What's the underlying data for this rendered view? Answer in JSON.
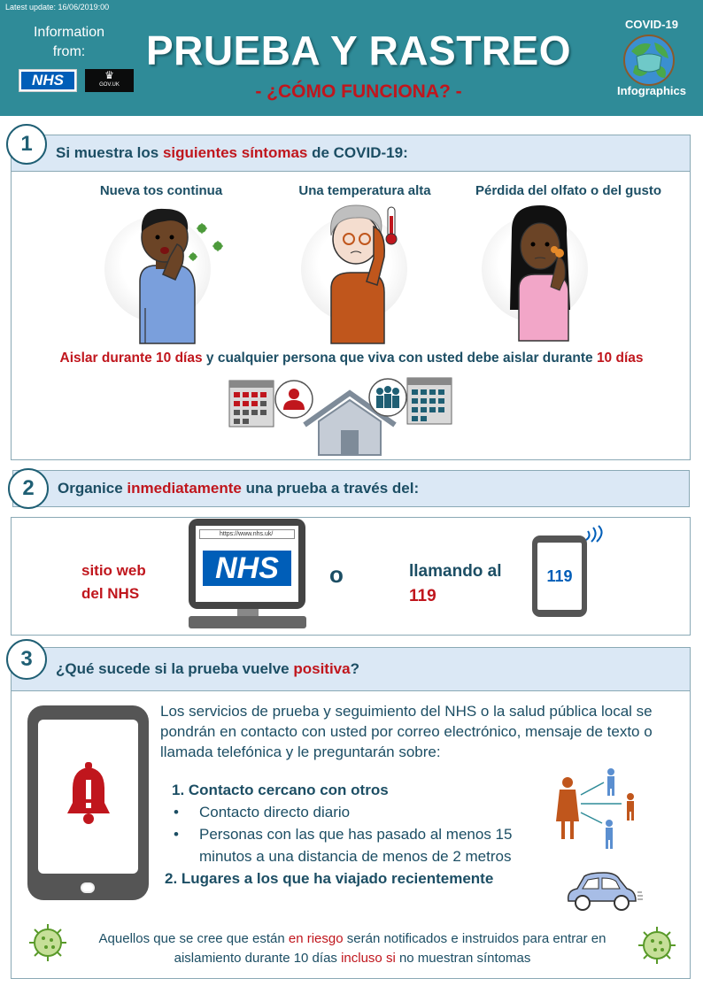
{
  "header": {
    "update": "Latest update: 16/06/2019:00",
    "info_line1": "Information",
    "info_line2": "from:",
    "nhs": "NHS",
    "gov": "GOV.UK",
    "title": "PRUEBA Y RASTREO",
    "subtitle": "- ¿CÓMO FUNCIONA? -",
    "covid": "COVID-19",
    "infographics": "Infographics"
  },
  "s1": {
    "num": "1",
    "heading_a": "Si muestra los ",
    "heading_b": "siguientes síntomas",
    "heading_c": " de COVID-19:",
    "sym1": "Nueva tos continua",
    "sym2": "Una temperatura alta",
    "sym3": "Pérdida del olfato o del gusto",
    "iso_a": "Aislar durante 10 días",
    "iso_b": " y cualquier persona que viva con usted debe aislar durante ",
    "iso_c": "10 días"
  },
  "s2": {
    "num": "2",
    "heading_a": "Organice ",
    "heading_b": "inmediatamente",
    "heading_c": " una prueba a través del:",
    "url": "https://www.nhs.uk/",
    "nhs": "NHS",
    "sitio1": "sitio web",
    "sitio2": "del NHS",
    "or": "o",
    "llamando": "llamando al",
    "number": "119",
    "phone_number": "119"
  },
  "s3": {
    "num": "3",
    "heading_a": "¿Qué sucede si la prueba vuelve ",
    "heading_b": "positiva",
    "heading_c": "?",
    "para": "Los servicios de prueba y seguimiento del NHS o la salud pública local se pondrán en contacto con usted por correo electrónico, mensaje de texto o llamada telefónica y le preguntarán sobre:",
    "item1": "1. Contacto cercano con otros",
    "bullet1": "Contacto directo diario",
    "bullet2": "Personas con las que has pasado al menos 15 minutos a una distancia de menos de 2 metros",
    "item2": "2. Lugares a los que ha viajado recientemente",
    "foot_a": "Aquellos que se cree que están ",
    "foot_b": "en riesgo",
    "foot_c": " serán notificados e instruidos para entrar en aislamiento durante 10 días ",
    "foot_d": "incluso si",
    "foot_e": " no muestran síntomas"
  },
  "colors": {
    "teal": "#2f8b98",
    "red": "#c0161d",
    "navy": "#1c4e64",
    "nhs_blue": "#005eb8"
  }
}
